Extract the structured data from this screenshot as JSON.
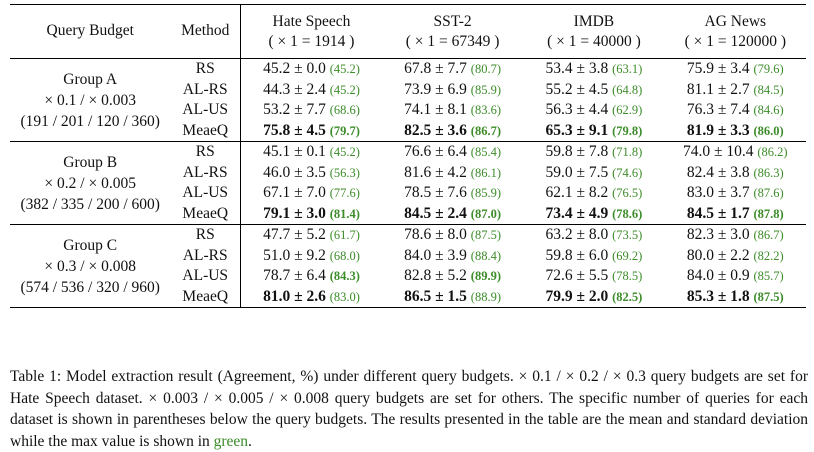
{
  "header": {
    "query_budget": "Query Budget",
    "method": "Method",
    "datasets": [
      {
        "name": "Hate Speech",
        "scale": "( × 1 = 1914 )"
      },
      {
        "name": "SST-2",
        "scale": "( × 1 = 67349 )"
      },
      {
        "name": "IMDB",
        "scale": "( × 1 = 40000 )"
      },
      {
        "name": "AG News",
        "scale": "( × 1 = 120000 )"
      }
    ]
  },
  "groups": [
    {
      "name": "Group A",
      "ratio": "× 0.1 / × 0.003",
      "counts": "(191 / 201 / 120 / 360)",
      "rows": [
        {
          "method": "RS",
          "cells": [
            {
              "val": "45.2 ± 0.0",
              "max": "(45.2)",
              "bold": false
            },
            {
              "val": "67.8 ± 7.7",
              "max": "(80.7)",
              "bold": false
            },
            {
              "val": "53.4 ± 3.8",
              "max": "(63.1)",
              "bold": false
            },
            {
              "val": "75.9 ± 3.4",
              "max": "(79.6)",
              "bold": false
            }
          ]
        },
        {
          "method": "AL-RS",
          "cells": [
            {
              "val": "44.3 ± 2.4",
              "max": "(45.2)",
              "bold": false
            },
            {
              "val": "73.9 ± 6.9",
              "max": "(85.9)",
              "bold": false
            },
            {
              "val": "55.2 ± 4.5",
              "max": "(64.8)",
              "bold": false
            },
            {
              "val": "81.1 ± 2.7",
              "max": "(84.5)",
              "bold": false
            }
          ]
        },
        {
          "method": "AL-US",
          "cells": [
            {
              "val": "53.2 ± 7.7",
              "max": "(68.6)",
              "bold": false
            },
            {
              "val": "74.1 ± 8.1",
              "max": "(83.6)",
              "bold": false
            },
            {
              "val": "56.3 ± 4.4",
              "max": "(62.9)",
              "bold": false
            },
            {
              "val": "76.3 ± 7.4",
              "max": "(84.6)",
              "bold": false
            }
          ]
        },
        {
          "method": "MeaeQ",
          "cells": [
            {
              "val": "75.8 ± 4.5",
              "max": "(79.7)",
              "bold": true
            },
            {
              "val": "82.5 ± 3.6",
              "max": "(86.7)",
              "bold": true
            },
            {
              "val": "65.3 ± 9.1",
              "max": "(79.8)",
              "bold": true
            },
            {
              "val": "81.9 ± 3.3",
              "max": "(86.0)",
              "bold": true
            }
          ]
        }
      ]
    },
    {
      "name": "Group B",
      "ratio": "× 0.2 / × 0.005",
      "counts": "(382 / 335 / 200 / 600)",
      "rows": [
        {
          "method": "RS",
          "cells": [
            {
              "val": "45.1 ± 0.1",
              "max": "(45.2)",
              "bold": false
            },
            {
              "val": "76.6 ± 6.4",
              "max": "(85.4)",
              "bold": false
            },
            {
              "val": "59.8 ± 7.8",
              "max": "(71.8)",
              "bold": false
            },
            {
              "val": "74.0 ± 10.4",
              "max": "(86.2)",
              "bold": false
            }
          ]
        },
        {
          "method": "AL-RS",
          "cells": [
            {
              "val": "46.0 ± 3.5",
              "max": "(56.3)",
              "bold": false
            },
            {
              "val": "81.6 ± 4.2",
              "max": "(86.1)",
              "bold": false
            },
            {
              "val": "59.0 ± 7.5",
              "max": "(74.6)",
              "bold": false
            },
            {
              "val": "82.4 ± 3.8",
              "max": "(86.3)",
              "bold": false
            }
          ]
        },
        {
          "method": "AL-US",
          "cells": [
            {
              "val": "67.1 ± 7.0",
              "max": "(77.6)",
              "bold": false
            },
            {
              "val": "78.5 ± 7.6",
              "max": "(85.9)",
              "bold": false
            },
            {
              "val": "62.1 ± 8.2",
              "max": "(76.5)",
              "bold": false
            },
            {
              "val": "83.0 ± 3.7",
              "max": "(87.6)",
              "bold": false
            }
          ]
        },
        {
          "method": "MeaeQ",
          "cells": [
            {
              "val": "79.1 ± 3.0",
              "max": "(81.4)",
              "bold": true
            },
            {
              "val": "84.5 ± 2.4",
              "max": "(87.0)",
              "bold": true
            },
            {
              "val": "73.4 ± 4.9",
              "max": "(78.6)",
              "bold": true
            },
            {
              "val": "84.5 ± 1.7",
              "max": "(87.8)",
              "bold": true
            }
          ]
        }
      ]
    },
    {
      "name": "Group C",
      "ratio": "× 0.3 / × 0.008",
      "counts": "(574 / 536 / 320 / 960)",
      "rows": [
        {
          "method": "RS",
          "cells": [
            {
              "val": "47.7 ± 5.2",
              "max": "(61.7)",
              "bold": false
            },
            {
              "val": "78.6 ± 8.0",
              "max": "(87.5)",
              "bold": false
            },
            {
              "val": "63.2 ± 8.0",
              "max": "(73.5)",
              "bold": false
            },
            {
              "val": "82.3 ± 3.0",
              "max": "(86.7)",
              "bold": false
            }
          ]
        },
        {
          "method": "AL-RS",
          "cells": [
            {
              "val": "51.0 ± 9.2",
              "max": "(68.0)",
              "bold": false
            },
            {
              "val": "84.0 ± 3.9",
              "max": "(88.4)",
              "bold": false
            },
            {
              "val": "59.8 ± 6.0",
              "max": "(69.2)",
              "bold": false
            },
            {
              "val": "80.0 ± 2.2",
              "max": "(82.2)",
              "bold": false
            }
          ]
        },
        {
          "method": "AL-US",
          "cells": [
            {
              "val": "78.7 ± 6.4",
              "max": "(84.3)",
              "bold": false,
              "max_bold": true
            },
            {
              "val": "82.8 ± 5.2",
              "max": "(89.9)",
              "bold": false,
              "max_bold": true
            },
            {
              "val": "72.6 ± 5.5",
              "max": "(78.5)",
              "bold": false
            },
            {
              "val": "84.0 ± 0.9",
              "max": "(85.7)",
              "bold": false
            }
          ]
        },
        {
          "method": "MeaeQ",
          "cells": [
            {
              "val": "81.0 ± 2.6",
              "max": "(83.0)",
              "bold": true,
              "max_bold": false
            },
            {
              "val": "86.5 ± 1.5",
              "max": "(88.9)",
              "bold": true,
              "max_bold": false
            },
            {
              "val": "79.9 ± 2.0",
              "max": "(82.5)",
              "bold": true
            },
            {
              "val": "85.3 ± 1.8",
              "max": "(87.5)",
              "bold": true
            }
          ]
        }
      ]
    }
  ],
  "caption": {
    "part1": "Table 1: Model extraction result (Agreement, %) under different query budgets. × 0.1 / × 0.2 / × 0.3 query budgets are set for Hate Speech dataset. × 0.003 / × 0.005 / × 0.008 query budgets are set for others. The specific number of queries for each dataset is shown in parentheses below the query budgets. The results presented in the table are the mean and standard deviation while the max value is shown in ",
    "green_word": "green",
    "part2": "."
  },
  "colors": {
    "max_value": "#3c8c2a",
    "rule": "#000000"
  }
}
